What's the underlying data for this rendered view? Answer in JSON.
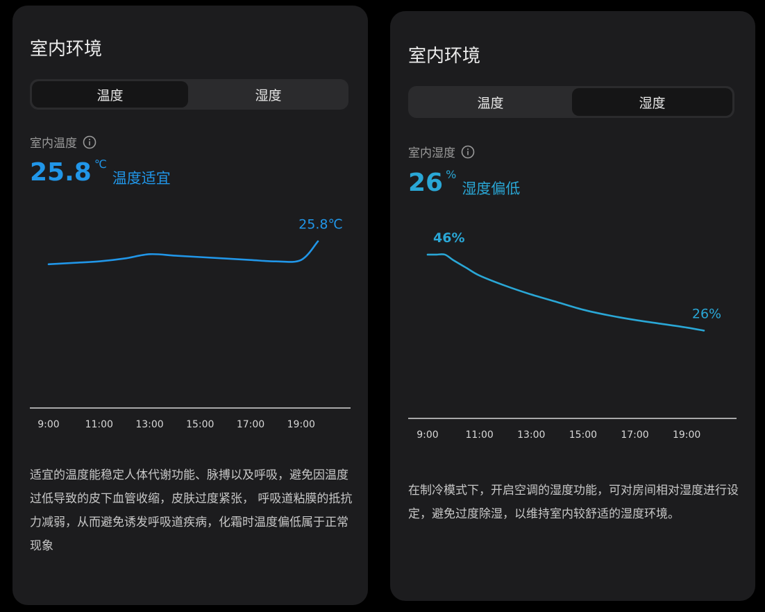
{
  "temperature_card": {
    "title": "室内环境",
    "tabs": [
      {
        "label": "温度",
        "active": true
      },
      {
        "label": "湿度",
        "active": false
      }
    ],
    "metric_label": "室内温度",
    "value": "25.8",
    "unit": "℃",
    "status": "温度适宜",
    "accent_color": "#2196e8",
    "chart_data": {
      "type": "line",
      "x": [
        "9:00",
        "10:00",
        "11:00",
        "12:00",
        "13:00",
        "14:00",
        "15:00",
        "16:00",
        "17:00",
        "18:00",
        "19:00",
        "19:40"
      ],
      "values": [
        25.0,
        25.05,
        25.1,
        25.2,
        25.35,
        25.3,
        25.25,
        25.2,
        25.15,
        25.1,
        25.15,
        25.8
      ],
      "xticks": [
        "9:00",
        "11:00",
        "13:00",
        "15:00",
        "17:00",
        "19:00"
      ],
      "last_label": "25.8℃",
      "ylim": [
        20,
        27
      ]
    },
    "description": "适宜的温度能稳定人体代谢功能、脉搏以及呼吸，避免因温度过低导致的皮下血管收缩，皮肤过度紧张， 呼吸道粘膜的抵抗力减弱，从而避免诱发呼吸道疾病，化霜时温度偏低属于正常现象"
  },
  "humidity_card": {
    "title": "室内环境",
    "tabs": [
      {
        "label": "温度",
        "active": false
      },
      {
        "label": "湿度",
        "active": true
      }
    ],
    "metric_label": "室内湿度",
    "value": "26",
    "unit": "%",
    "status": "湿度偏低",
    "accent_color": "#2aa7d6",
    "chart_data": {
      "type": "line",
      "x": [
        "9:00",
        "9:20",
        "9:40",
        "10:00",
        "10:30",
        "11:00",
        "12:00",
        "13:00",
        "14:00",
        "15:00",
        "16:00",
        "17:00",
        "18:00",
        "19:00",
        "19:40"
      ],
      "values": [
        46,
        46,
        46,
        44.5,
        42.5,
        40.5,
        37.8,
        35.5,
        33.5,
        31.5,
        30,
        28.8,
        27.8,
        26.8,
        26
      ],
      "xticks": [
        "9:00",
        "11:00",
        "13:00",
        "15:00",
        "17:00",
        "19:00"
      ],
      "first_label": "46%",
      "last_label": "26%",
      "ylim": [
        10,
        48
      ]
    },
    "description": "在制冷模式下，开启空调的湿度功能，可对房间相对湿度进行设定，避免过度除湿，以维持室内较舒适的湿度环境。"
  }
}
